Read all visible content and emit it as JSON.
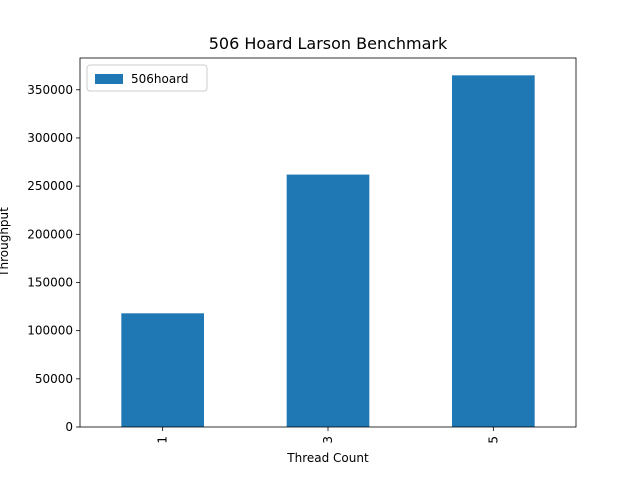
{
  "chart_data": {
    "type": "bar",
    "title": "506 Hoard Larson Benchmark",
    "xlabel": "Thread Count",
    "ylabel": "Throughput",
    "categories": [
      "1",
      "3",
      "5"
    ],
    "series": [
      {
        "name": "506hoard",
        "color": "#1f77b4",
        "values": [
          118000,
          262000,
          365000
        ]
      }
    ],
    "ylim": [
      0,
      383000
    ],
    "yticks": [
      0,
      50000,
      100000,
      150000,
      200000,
      250000,
      300000,
      350000
    ],
    "ytick_labels": [
      "0",
      "50000",
      "100000",
      "150000",
      "200000",
      "250000",
      "300000",
      "350000"
    ],
    "xtick_rotation": "vertical",
    "legend_position": "upper-left",
    "grid": false
  }
}
